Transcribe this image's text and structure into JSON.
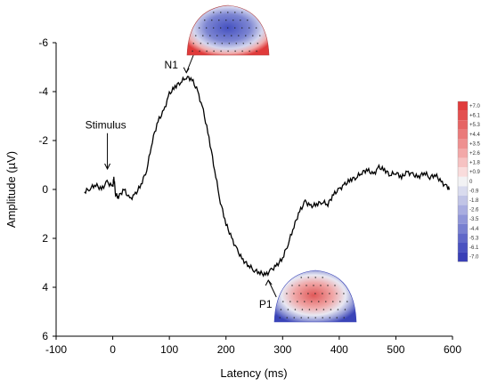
{
  "chart_data": {
    "type": "line",
    "xlabel": "Latency (ms)",
    "ylabel": "Amplitude (µV)",
    "xlim": [
      -100,
      600
    ],
    "ylim": [
      -6,
      6
    ],
    "y_inverted": true,
    "x_ticks": [
      "-100",
      "0",
      "100",
      "200",
      "300",
      "400",
      "500",
      "600"
    ],
    "y_ticks": [
      "-6",
      "-4",
      "-2",
      "0",
      "2",
      "4",
      "6"
    ],
    "grid": false,
    "series": [
      {
        "x": [
          -50,
          -40,
          -30,
          -20,
          -10,
          0,
          2,
          5,
          10,
          20,
          30,
          40,
          50,
          60,
          70,
          80,
          90,
          100,
          110,
          120,
          130,
          140,
          150,
          160,
          170,
          180,
          190,
          200,
          210,
          220,
          230,
          240,
          250,
          260,
          270,
          280,
          290,
          300,
          310,
          320,
          330,
          340,
          350,
          360,
          370,
          380,
          390,
          400,
          410,
          420,
          430,
          440,
          450,
          460,
          470,
          480,
          490,
          500,
          510,
          520,
          530,
          540,
          550,
          560,
          570,
          580,
          590,
          595
        ],
        "y": [
          0.1,
          -0.05,
          -0.2,
          0.0,
          -0.3,
          -0.1,
          -0.5,
          0.2,
          0.3,
          0.0,
          0.4,
          0.2,
          -0.2,
          -0.8,
          -2.0,
          -2.8,
          -3.2,
          -3.9,
          -4.2,
          -4.4,
          -4.6,
          -4.5,
          -4.0,
          -3.2,
          -2.1,
          -0.8,
          0.5,
          1.4,
          2.0,
          2.5,
          2.9,
          3.1,
          3.3,
          3.4,
          3.5,
          3.3,
          3.1,
          2.8,
          2.2,
          1.5,
          0.9,
          0.5,
          0.7,
          0.6,
          0.5,
          0.6,
          0.2,
          0.0,
          -0.2,
          -0.4,
          -0.5,
          -0.7,
          -0.8,
          -0.6,
          -0.9,
          -0.8,
          -0.6,
          -0.7,
          -0.5,
          -0.7,
          -0.6,
          -0.5,
          -0.7,
          -0.5,
          -0.6,
          -0.3,
          -0.1,
          0.0
        ]
      }
    ],
    "annotations": [
      {
        "text": "Stimulus",
        "x": 0,
        "y": -0.8
      },
      {
        "text": "N1",
        "x": 130,
        "y": -4.7
      },
      {
        "text": "P1",
        "x": 270,
        "y": 3.6
      }
    ],
    "colorbar": {
      "labels": [
        "+7.0",
        "+6.1",
        "+5.3",
        "+4.4",
        "+3.5",
        "+2.6",
        "+1.8",
        "+0.9",
        "0",
        "-0.9",
        "-1.8",
        "-2.6",
        "-3.5",
        "-4.4",
        "-5.3",
        "-6.1",
        "-7.0"
      ],
      "colors": [
        "#e03c3c",
        "#e35050",
        "#e66464",
        "#ea7a7a",
        "#ee9090",
        "#f2a8a8",
        "#f6c2c2",
        "#f9dcdc",
        "#f2f2f4",
        "#d9dbee",
        "#c1c4e6",
        "#a9ade0",
        "#9096d8",
        "#7880d0",
        "#6068c8",
        "#4a52c0",
        "#3a40b6"
      ]
    }
  }
}
